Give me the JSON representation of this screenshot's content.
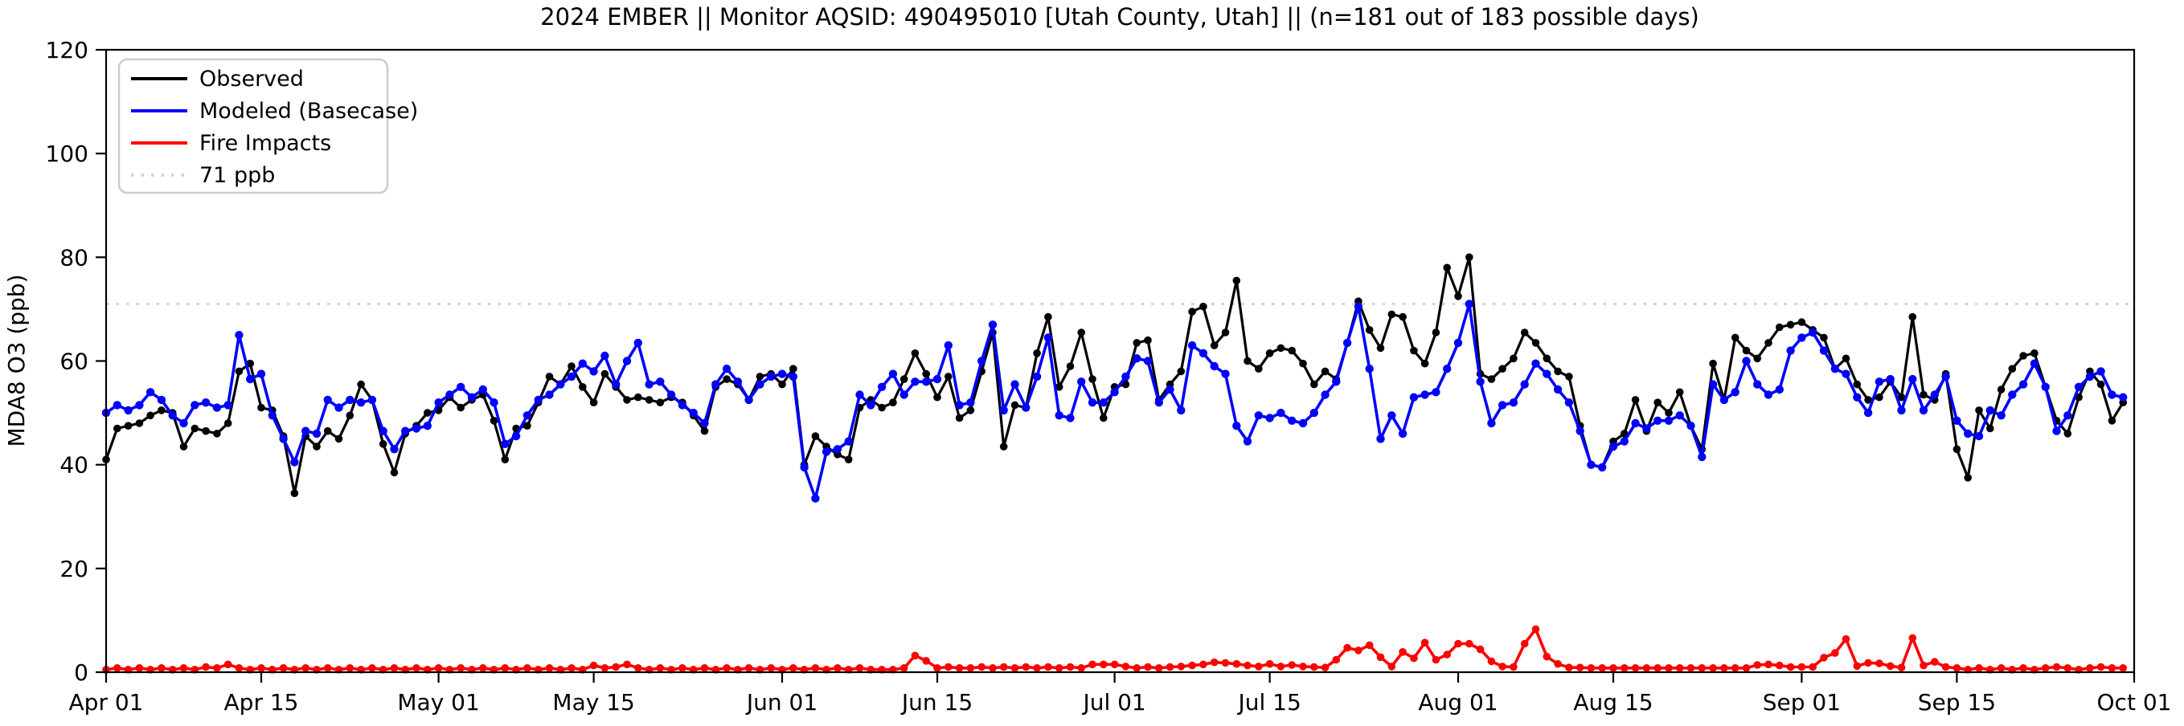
{
  "title": "2024 EMBER || Monitor AQSID: 490495010 [Utah County, Utah] || (n=181 out of 183 possible days)",
  "monitor": {
    "year": "2024",
    "program": "EMBER",
    "aqsid": "490495010",
    "location": "Utah County, Utah",
    "days_observed": 181,
    "days_possible": 183
  },
  "axes": {
    "ylabel": "MDA8 O3 (ppb)",
    "ylim": [
      0,
      120
    ],
    "yticks": [
      0,
      20,
      40,
      60,
      80,
      100,
      120
    ],
    "xlim_days": [
      0,
      183
    ],
    "xticks": [
      {
        "label": "Apr 01",
        "day": 0
      },
      {
        "label": "Apr 15",
        "day": 14
      },
      {
        "label": "May 01",
        "day": 30
      },
      {
        "label": "May 15",
        "day": 44
      },
      {
        "label": "Jun 01",
        "day": 61
      },
      {
        "label": "Jun 15",
        "day": 75
      },
      {
        "label": "Jul 01",
        "day": 91
      },
      {
        "label": "Jul 15",
        "day": 105
      },
      {
        "label": "Aug 01",
        "day": 122
      },
      {
        "label": "Aug 15",
        "day": 136
      },
      {
        "label": "Sep 01",
        "day": 153
      },
      {
        "label": "Sep 15",
        "day": 167
      },
      {
        "label": "Oct 01",
        "day": 183
      }
    ]
  },
  "legend": {
    "position": "upper-left",
    "items": [
      {
        "label": "Observed",
        "color": "#000000",
        "style": "solid"
      },
      {
        "label": "Modeled (Basecase)",
        "color": "#0000ff",
        "style": "solid"
      },
      {
        "label": "Fire Impacts",
        "color": "#ff0000",
        "style": "solid"
      },
      {
        "label": "71 ppb",
        "color": "#d3d3d3",
        "style": "dotted"
      }
    ]
  },
  "chart_data": {
    "type": "line",
    "title": "2024 EMBER || Monitor AQSID: 490495010 [Utah County, Utah] || (n=181 out of 183 possible days)",
    "xlabel": "",
    "ylabel": "MDA8 O3 (ppb)",
    "x_start_date": "2024-04-01",
    "x_unit": "day index from Apr 01",
    "n_days": 183,
    "grid": false,
    "threshold_line": {
      "value": 71,
      "label": "71 ppb",
      "color": "#d3d3d3",
      "style": "dotted"
    },
    "series": [
      {
        "name": "Observed",
        "color": "#000000",
        "marker": "circle",
        "values": [
          41,
          47,
          47.5,
          48,
          49.5,
          50.5,
          50,
          43.5,
          47,
          46.5,
          46,
          48,
          58,
          59.5,
          51,
          50.5,
          45.5,
          34.5,
          45.5,
          43.5,
          46.5,
          45,
          49.5,
          55.5,
          52.5,
          44,
          38.5,
          46,
          47.5,
          50,
          50.5,
          53,
          51,
          52.5,
          53.5,
          48.5,
          41,
          47,
          47.5,
          52,
          57,
          55.5,
          59,
          55,
          52,
          57.5,
          55,
          52.5,
          53,
          52.5,
          52,
          53,
          52,
          49.5,
          46.5,
          55,
          56.5,
          55.5,
          52.5,
          57,
          57.5,
          55.5,
          58.5,
          40,
          45.5,
          43.5,
          42,
          41,
          51,
          52.5,
          51,
          52,
          56.5,
          61.5,
          57.5,
          53,
          57,
          49,
          50.5,
          58,
          65.5,
          43.5,
          51.5,
          51,
          61.5,
          68.5,
          55,
          59,
          65.5,
          56.5,
          49,
          55,
          55.5,
          63.5,
          64,
          52.5,
          55.5,
          58,
          69.5,
          70.5,
          63,
          65.5,
          75.5,
          60,
          58.5,
          61.5,
          62.5,
          62,
          59.5,
          55.5,
          58,
          56.5,
          63.5,
          71.5,
          66,
          62.5,
          69,
          68.5,
          62,
          59.5,
          65.5,
          78,
          72.5,
          80,
          57.5,
          56.5,
          58.5,
          60.5,
          65.5,
          63.5,
          60.5,
          58,
          57,
          47.5,
          40,
          39.5,
          44.5,
          46,
          52.5,
          46.5,
          52,
          50,
          54,
          47.5,
          43,
          59.5,
          52.5,
          64.5,
          62,
          60.5,
          63.5,
          66.5,
          67,
          67.5,
          66,
          64.5,
          58.5,
          60.5,
          55.5,
          52.5,
          53,
          56,
          53,
          68.5,
          53.5,
          52.5,
          57.5,
          43,
          37.5,
          50.5,
          47,
          54.5,
          58.5,
          61,
          61.5,
          55,
          48.5,
          46,
          53,
          58,
          55.5,
          48.5,
          52
        ]
      },
      {
        "name": "Modeled (Basecase)",
        "color": "#0000ff",
        "marker": "circle",
        "values": [
          50,
          51.5,
          50.5,
          51.5,
          54,
          52.5,
          49.5,
          48,
          51.5,
          52,
          51,
          51.5,
          65,
          56.5,
          57.5,
          49.5,
          45,
          40.5,
          46.5,
          46,
          52.5,
          51,
          52.5,
          52,
          52.5,
          46.5,
          43,
          46.5,
          47,
          47.5,
          52,
          53.5,
          55,
          53,
          54.5,
          52,
          44,
          45.5,
          49.5,
          52.5,
          53.5,
          55.5,
          57,
          59.5,
          58,
          61,
          55.5,
          60,
          63.5,
          55.5,
          56,
          53.5,
          51.5,
          50,
          48,
          55.5,
          58.5,
          56,
          52.5,
          55.5,
          57,
          57.5,
          57,
          39.5,
          33.5,
          42.5,
          43,
          44.5,
          53.5,
          51.5,
          55,
          57.5,
          53.5,
          56,
          56,
          56.5,
          63,
          51.5,
          52,
          60,
          67,
          50.5,
          55.5,
          51,
          57,
          64.5,
          49.5,
          49,
          56,
          52,
          52,
          54,
          57,
          60.5,
          60,
          52,
          54.5,
          50.5,
          63,
          61.5,
          59,
          57.5,
          47.5,
          44.5,
          49.5,
          49,
          50,
          48.5,
          48,
          50,
          53.5,
          56,
          63.5,
          70.5,
          58.5,
          45,
          49.5,
          46,
          53,
          53.5,
          54,
          58.5,
          63.5,
          71,
          56,
          48,
          51.5,
          52,
          55.5,
          59.5,
          57.5,
          54.5,
          52,
          46.5,
          40,
          39.5,
          43.5,
          44.5,
          48,
          47,
          48.5,
          48.5,
          49.5,
          47.5,
          41.5,
          55.5,
          52.5,
          54,
          60,
          55.5,
          53.5,
          54.5,
          62,
          64.5,
          65.5,
          62,
          58.5,
          57.5,
          53,
          50,
          56,
          56.5,
          50.5,
          56.5,
          50.5,
          53.5,
          57,
          48.5,
          46,
          45.5,
          50.5,
          49.5,
          53.5,
          55.5,
          59.5,
          55,
          46.5,
          49.5,
          55,
          57,
          58,
          53.5,
          53
        ]
      },
      {
        "name": "Fire Impacts",
        "color": "#ff0000",
        "marker": "circle",
        "values": [
          0.5,
          0.8,
          0.5,
          0.8,
          0.5,
          0.8,
          0.5,
          0.8,
          0.5,
          1,
          0.8,
          1.5,
          0.8,
          0.5,
          0.8,
          0.5,
          0.8,
          0.5,
          0.8,
          0.5,
          0.8,
          0.5,
          0.8,
          0.5,
          0.8,
          0.5,
          0.8,
          0.5,
          0.8,
          0.5,
          0.8,
          0.5,
          0.8,
          0.5,
          0.8,
          0.5,
          0.8,
          0.5,
          0.8,
          0.5,
          0.8,
          0.5,
          0.8,
          0.5,
          1.3,
          0.8,
          1,
          1.5,
          0.8,
          0.5,
          0.8,
          0.5,
          0.8,
          0.5,
          0.8,
          0.5,
          0.8,
          0.5,
          0.8,
          0.5,
          0.8,
          0.5,
          0.8,
          0.5,
          0.8,
          0.5,
          0.8,
          0.5,
          0.8,
          0.5,
          0.5,
          0.5,
          0.8,
          3.2,
          2.2,
          0.8,
          1,
          0.8,
          0.8,
          1,
          0.8,
          1,
          0.8,
          1,
          0.8,
          1,
          0.8,
          1,
          0.8,
          1.5,
          1.5,
          1.5,
          1.1,
          0.8,
          1,
          0.8,
          1,
          1.1,
          1.3,
          1.5,
          1.9,
          1.8,
          1.6,
          1.3,
          1.1,
          1.6,
          1.1,
          1.4,
          1.1,
          1,
          0.9,
          2.4,
          4.7,
          4.2,
          5.2,
          2.9,
          1.1,
          3.9,
          2.7,
          5.7,
          2.4,
          3.4,
          5.5,
          5.5,
          4.4,
          2.1,
          1.1,
          1,
          5.5,
          8.3,
          3,
          1.6,
          0.9,
          0.9,
          0.8,
          0.8,
          0.8,
          0.8,
          0.8,
          0.8,
          0.8,
          0.8,
          0.8,
          0.8,
          0.8,
          0.8,
          0.8,
          0.8,
          0.8,
          1.4,
          1.5,
          1.3,
          1,
          1,
          1,
          2.8,
          3.7,
          6.4,
          1.2,
          1.8,
          1.7,
          1.2,
          0.9,
          6.6,
          1.3,
          2,
          1,
          0.8,
          0.5,
          0.8,
          0.5,
          0.8,
          0.5,
          0.8,
          0.5,
          0.8,
          1,
          0.8,
          0.5,
          0.8,
          1,
          0.8,
          0.8
        ]
      }
    ]
  }
}
